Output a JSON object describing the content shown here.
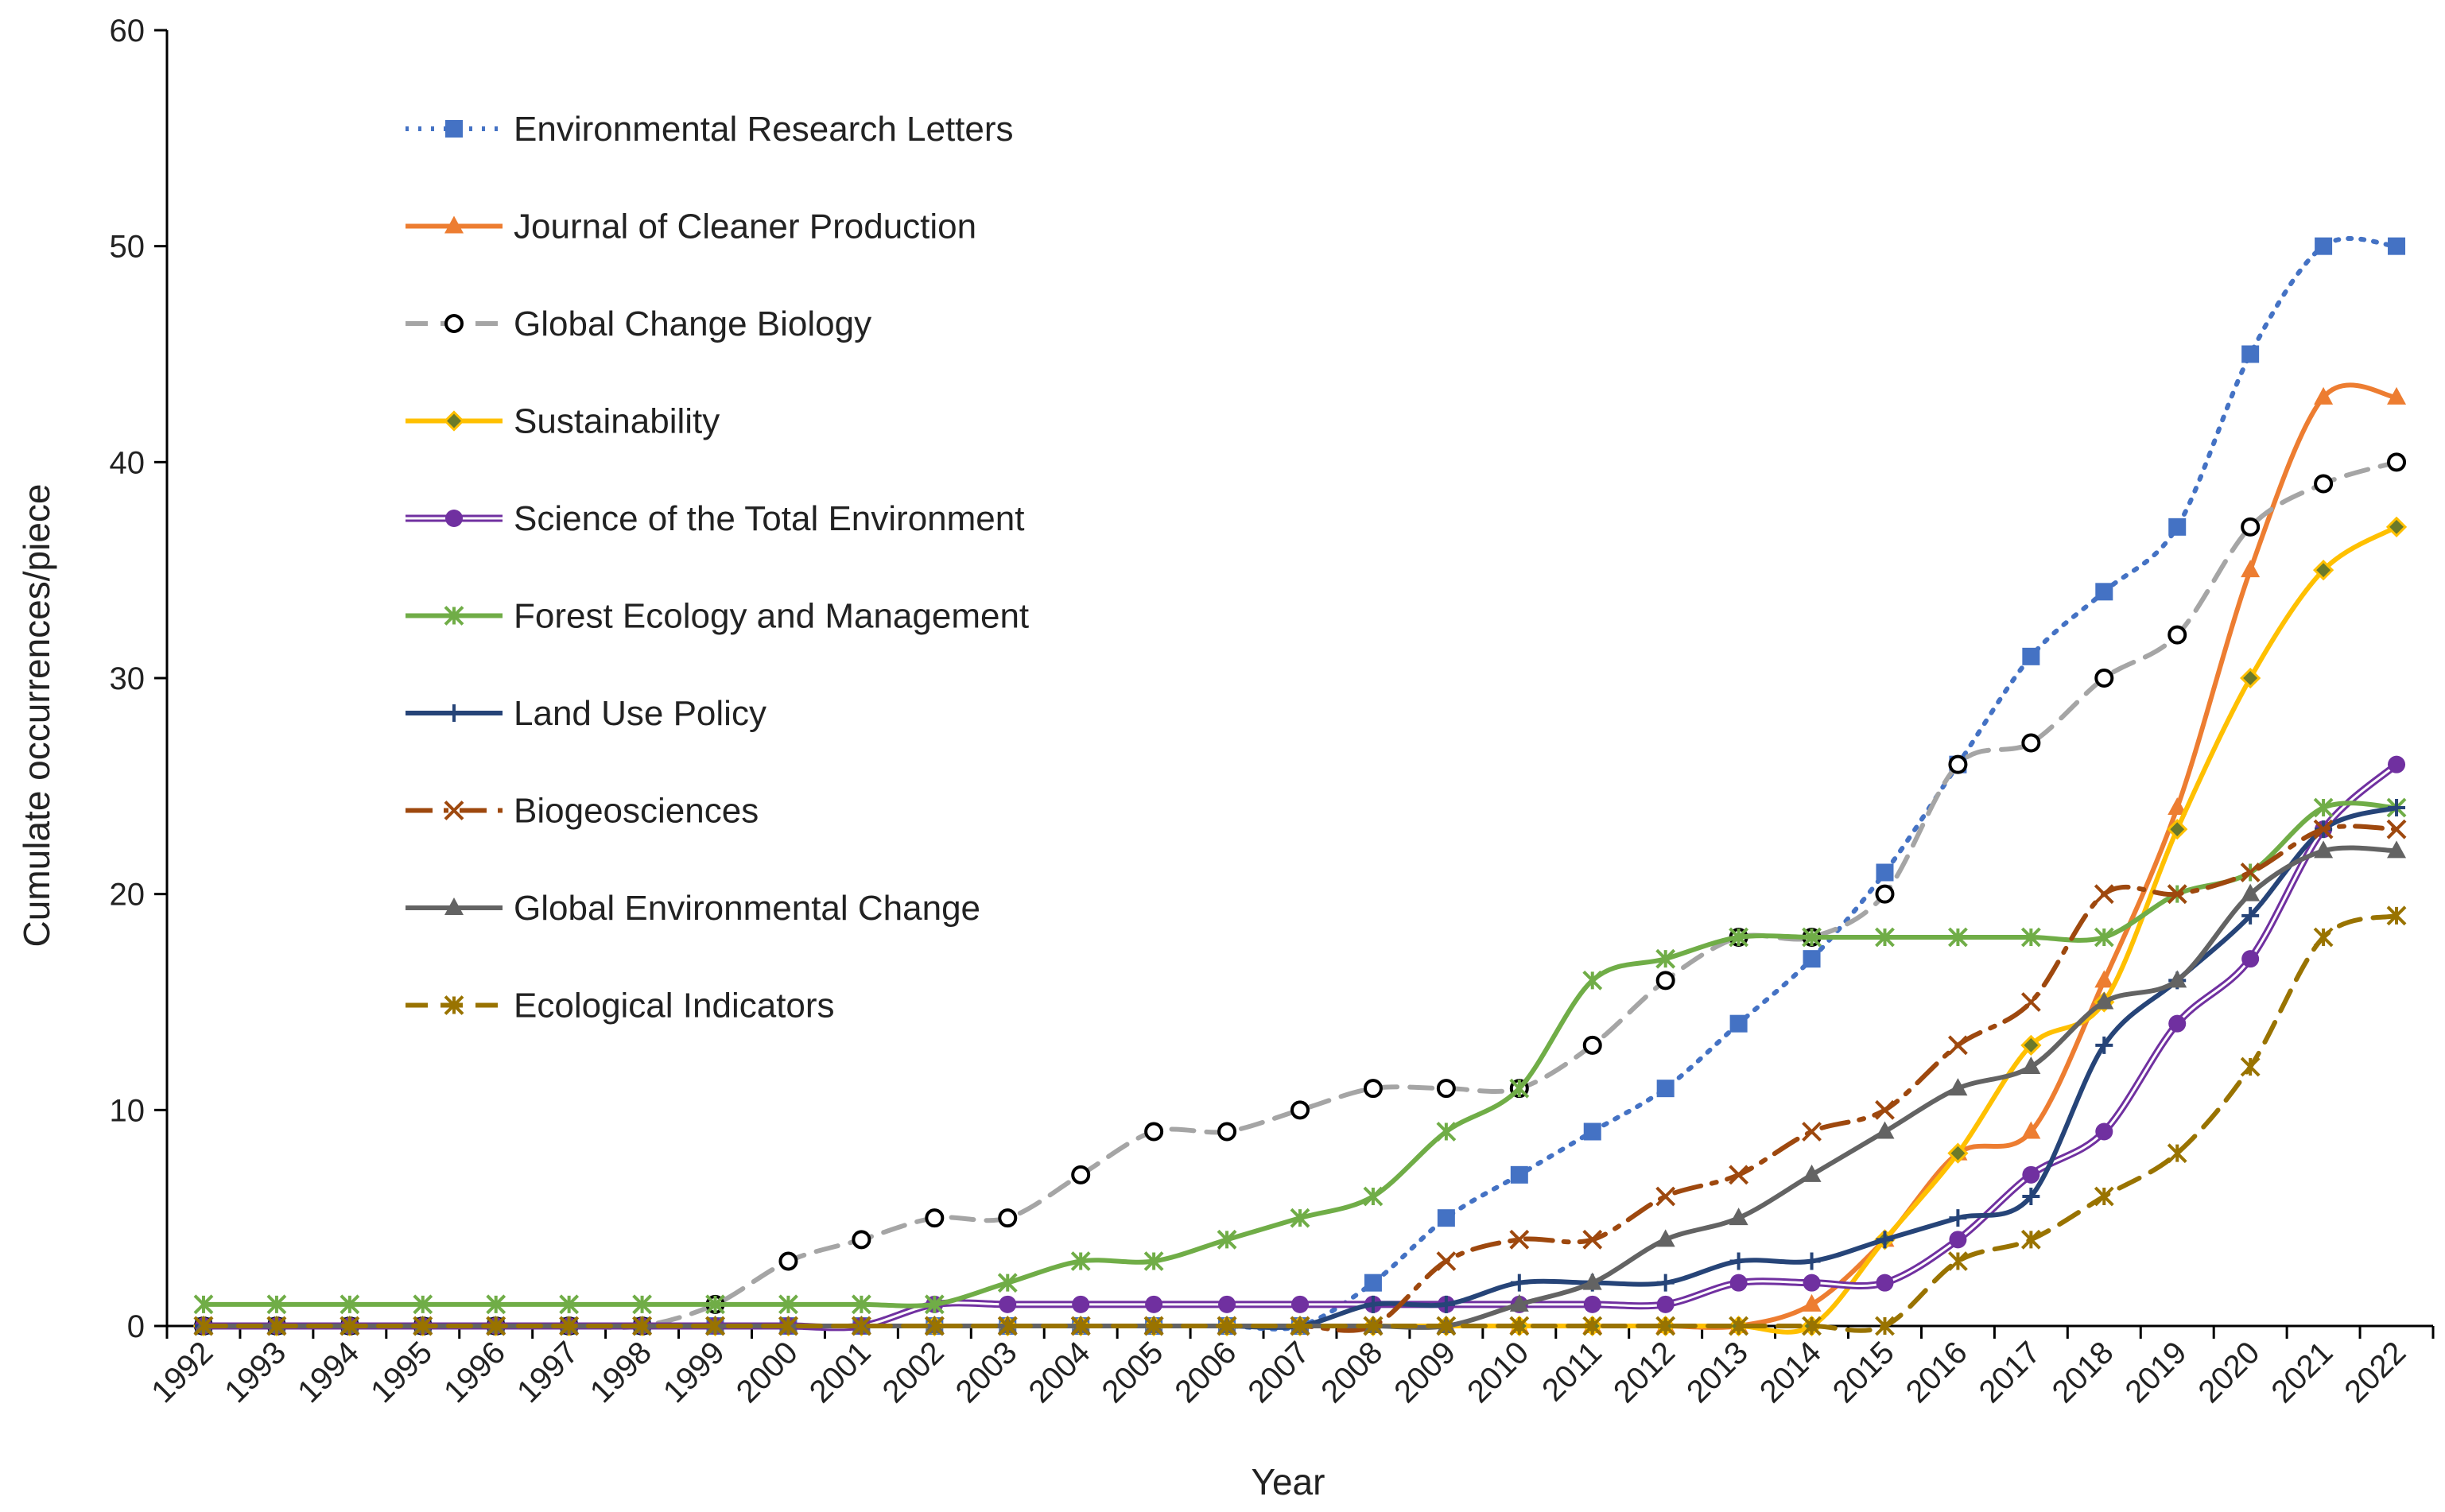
{
  "chart_data": {
    "type": "line",
    "title": "",
    "xlabel": "Year",
    "ylabel": "Cumulate occurrences/piece",
    "ylim": [
      0,
      60
    ],
    "yticks": [
      0,
      10,
      20,
      30,
      40,
      50,
      60
    ],
    "grid": false,
    "legend_position": "top-left",
    "categories": [
      "1992",
      "1993",
      "1994",
      "1995",
      "1996",
      "1997",
      "1998",
      "1999",
      "2000",
      "2001",
      "2002",
      "2003",
      "2004",
      "2005",
      "2006",
      "2007",
      "2008",
      "2009",
      "2010",
      "2011",
      "2012",
      "2013",
      "2014",
      "2015",
      "2016",
      "2017",
      "2018",
      "2019",
      "2020",
      "2021",
      "2022"
    ],
    "series": [
      {
        "name": "Environmental Research Letters",
        "color": "#4472C4",
        "dash": "dotted",
        "marker": "square",
        "values": [
          0,
          0,
          0,
          0,
          0,
          0,
          0,
          0,
          0,
          0,
          0,
          0,
          0,
          0,
          0,
          0,
          2,
          5,
          7,
          9,
          11,
          14,
          17,
          21,
          26,
          31,
          34,
          37,
          45,
          50,
          50
        ]
      },
      {
        "name": "Journal of Cleaner Production",
        "color": "#ED7D31",
        "dash": "solid",
        "marker": "triangle",
        "values": [
          0,
          0,
          0,
          0,
          0,
          0,
          0,
          0,
          0,
          0,
          0,
          0,
          0,
          0,
          0,
          0,
          0,
          0,
          0,
          0,
          0,
          0,
          1,
          4,
          8,
          9,
          16,
          24,
          35,
          43,
          43
        ]
      },
      {
        "name": "Global Change Biology",
        "color": "#A5A5A5",
        "dash": "dash",
        "marker": "open-circle",
        "values": [
          0,
          0,
          0,
          0,
          0,
          0,
          0,
          1,
          3,
          4,
          5,
          5,
          7,
          9,
          9,
          10,
          11,
          11,
          11,
          13,
          16,
          18,
          18,
          20,
          26,
          27,
          30,
          32,
          37,
          39,
          40
        ]
      },
      {
        "name": "Sustainability",
        "color": "#FFC000",
        "dash": "solid",
        "marker": "diamond",
        "values": [
          0,
          0,
          0,
          0,
          0,
          0,
          0,
          0,
          0,
          0,
          0,
          0,
          0,
          0,
          0,
          0,
          0,
          0,
          0,
          0,
          0,
          0,
          0,
          4,
          8,
          13,
          15,
          23,
          30,
          35,
          37
        ]
      },
      {
        "name": "Science of the Total Environment",
        "color": "#7030A0",
        "dash": "double",
        "marker": "circle",
        "values": [
          0,
          0,
          0,
          0,
          0,
          0,
          0,
          0,
          0,
          0,
          1,
          1,
          1,
          1,
          1,
          1,
          1,
          1,
          1,
          1,
          1,
          2,
          2,
          2,
          4,
          7,
          9,
          14,
          17,
          23,
          26
        ]
      },
      {
        "name": "Forest Ecology and Management",
        "color": "#70AD47",
        "dash": "solid",
        "marker": "star",
        "values": [
          1,
          1,
          1,
          1,
          1,
          1,
          1,
          1,
          1,
          1,
          1,
          2,
          3,
          3,
          4,
          5,
          6,
          9,
          11,
          16,
          17,
          18,
          18,
          18,
          18,
          18,
          18,
          20,
          21,
          24,
          24
        ]
      },
      {
        "name": "Land Use Policy",
        "color": "#264478",
        "dash": "solid",
        "marker": "plus",
        "values": [
          0,
          0,
          0,
          0,
          0,
          0,
          0,
          0,
          0,
          0,
          0,
          0,
          0,
          0,
          0,
          0,
          1,
          1,
          2,
          2,
          2,
          3,
          3,
          4,
          5,
          6,
          13,
          16,
          19,
          23,
          24
        ]
      },
      {
        "name": "Biogeosciences",
        "color": "#9E480E",
        "dash": "dashdot",
        "marker": "x",
        "values": [
          0,
          0,
          0,
          0,
          0,
          0,
          0,
          0,
          0,
          0,
          0,
          0,
          0,
          0,
          0,
          0,
          0,
          3,
          4,
          4,
          6,
          7,
          9,
          10,
          13,
          15,
          20,
          20,
          21,
          23,
          23
        ]
      },
      {
        "name": "Global Environmental Change",
        "color": "#636363",
        "dash": "solid",
        "marker": "triangle",
        "values": [
          0,
          0,
          0,
          0,
          0,
          0,
          0,
          0,
          0,
          0,
          0,
          0,
          0,
          0,
          0,
          0,
          0,
          0,
          1,
          2,
          4,
          5,
          7,
          9,
          11,
          12,
          15,
          16,
          20,
          22,
          22
        ]
      },
      {
        "name": "Ecological Indicators",
        "color": "#997300",
        "dash": "dash",
        "marker": "star",
        "values": [
          0,
          0,
          0,
          0,
          0,
          0,
          0,
          0,
          0,
          0,
          0,
          0,
          0,
          0,
          0,
          0,
          0,
          0,
          0,
          0,
          0,
          0,
          0,
          0,
          3,
          4,
          6,
          8,
          12,
          18,
          19
        ]
      }
    ]
  }
}
